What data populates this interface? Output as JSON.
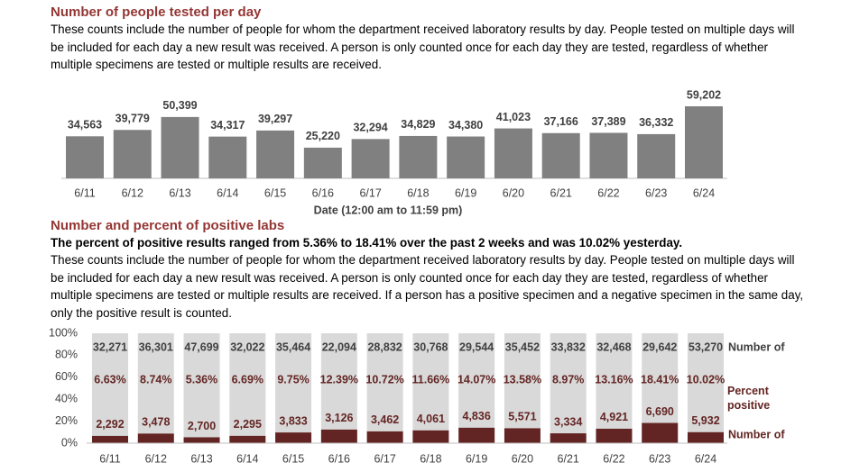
{
  "chart_data": [
    {
      "type": "bar",
      "title": "Number of people tested per day",
      "subtitle": "These counts include the number of people for whom the department received laboratory results by day. People tested on multiple days will be included for each day a new result was received. A person is only counted once for each day they are tested, regardless of whether multiple specimens are tested or multiple results are received.",
      "x_label": "Date (12:00 am to 11:59 pm)",
      "categories": [
        "6/11",
        "6/12",
        "6/13",
        "6/14",
        "6/15",
        "6/16",
        "6/17",
        "6/18",
        "6/19",
        "6/20",
        "6/21",
        "6/22",
        "6/23",
        "6/24"
      ],
      "values": [
        34563,
        39779,
        50399,
        34317,
        39297,
        25220,
        32294,
        34829,
        34380,
        41023,
        37166,
        37389,
        36332,
        59202
      ],
      "value_labels": [
        "34,563",
        "39,779",
        "50,399",
        "34,317",
        "39,297",
        "25,220",
        "32,294",
        "34,829",
        "34,380",
        "41,023",
        "37,166",
        "37,389",
        "36,332",
        "59,202"
      ],
      "color": "#808080"
    },
    {
      "type": "stacked_percent_bar",
      "title": "Number and percent of positive labs",
      "headline": "The percent of positive results ranged from 5.36% to 18.41% over the past 2 weeks and was 10.02% yesterday.",
      "subtitle": "These counts include the number of people for whom the department received laboratory results by day. People tested on multiple days will be included for each day a new result was received. A person is only counted once for each day they are tested, regardless of whether multiple specimens are tested or multiple results are received. If a person has a positive specimen and a negative specimen in the same day, only the positive result is counted.",
      "categories": [
        "6/11",
        "6/12",
        "6/13",
        "6/14",
        "6/15",
        "6/16",
        "6/17",
        "6/18",
        "6/19",
        "6/20",
        "6/21",
        "6/22",
        "6/23",
        "6/24"
      ],
      "ylim": [
        0,
        100
      ],
      "yticks": [
        {
          "value": 0,
          "label": "0%"
        },
        {
          "value": 20,
          "label": "20%"
        },
        {
          "value": 40,
          "label": "40%"
        },
        {
          "value": 60,
          "label": "60%"
        },
        {
          "value": 80,
          "label": "80%"
        },
        {
          "value": 100,
          "label": "100%"
        }
      ],
      "series": [
        {
          "name": "Number of",
          "color": "#d9d9d9",
          "values": [
            32271,
            36301,
            47699,
            32022,
            35464,
            22094,
            28832,
            30768,
            29544,
            35452,
            33832,
            32468,
            29642,
            53270
          ],
          "value_labels": [
            "32,271",
            "36,301",
            "47,699",
            "32,022",
            "35,464",
            "22,094",
            "28,832",
            "30,768",
            "29,544",
            "35,452",
            "33,832",
            "32,468",
            "29,642",
            "53,270"
          ]
        },
        {
          "name": "Number of",
          "color": "#632523",
          "values": [
            2292,
            3478,
            2700,
            2295,
            3833,
            3126,
            3462,
            4061,
            4836,
            5571,
            3334,
            4921,
            6690,
            5932
          ],
          "value_labels": [
            "2,292",
            "3,478",
            "2,700",
            "2,295",
            "3,833",
            "3,126",
            "3,462",
            "4,061",
            "4,836",
            "5,571",
            "3,334",
            "4,921",
            "6,690",
            "5,932"
          ]
        }
      ],
      "percent": {
        "name": "Percent positive",
        "values": [
          6.63,
          8.74,
          5.36,
          6.69,
          9.75,
          12.39,
          10.72,
          11.66,
          14.07,
          13.58,
          8.97,
          13.16,
          18.41,
          10.02
        ],
        "value_labels": [
          "6.63%",
          "8.74%",
          "5.36%",
          "6.69%",
          "9.75%",
          "12.39%",
          "10.72%",
          "11.66%",
          "14.07%",
          "13.58%",
          "8.97%",
          "13.16%",
          "18.41%",
          "10.02%"
        ]
      }
    }
  ]
}
